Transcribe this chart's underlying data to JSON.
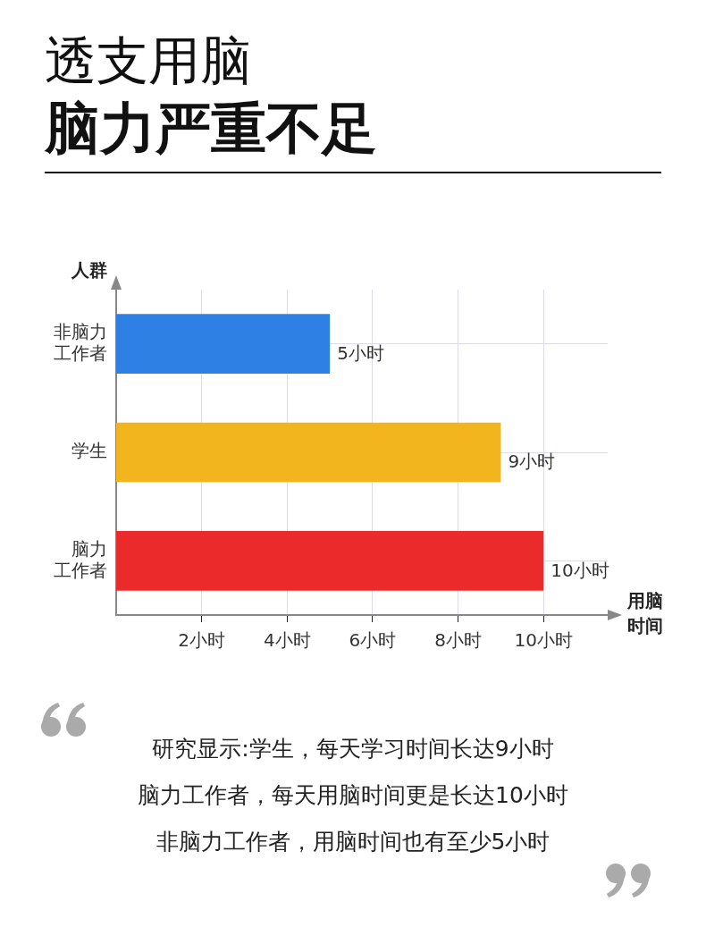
{
  "chart_data": {
    "type": "bar",
    "orientation": "horizontal",
    "title": "透支用脑",
    "subtitle": "脑力严重不足",
    "ylabel": "人群",
    "xlabel": "用脑时间",
    "categories": [
      "非脑力工作者",
      "学生",
      "脑力工作者"
    ],
    "values": [
      5,
      9,
      10
    ],
    "colors": [
      "#2f80e4",
      "#f2b51d",
      "#ea2a2b"
    ],
    "value_labels": [
      "5小时",
      "9小时",
      "10小时"
    ],
    "xlim": [
      0,
      11.5
    ],
    "xticks": [
      {
        "value": 2,
        "label": "2小时"
      },
      {
        "value": 4,
        "label": "4小时"
      },
      {
        "value": 6,
        "label": "6小时"
      },
      {
        "value": 8,
        "label": "8小时"
      },
      {
        "value": 10,
        "label": "10小时"
      }
    ],
    "grid": true,
    "legend": false,
    "annotations": [
      "研究显示:学生，每天学习时间长达9小时",
      "脑力工作者，每天用脑时间更是长达10小时",
      "非脑力工作者，用脑时间也有至少5小时"
    ]
  }
}
